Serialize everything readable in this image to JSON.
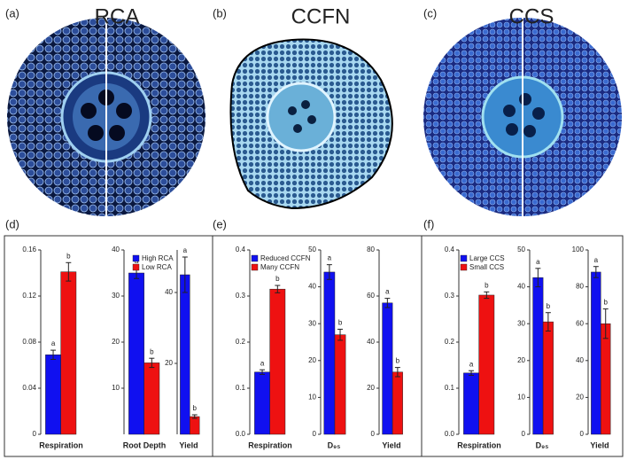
{
  "figure": {
    "panels": [
      {
        "label": "(a)",
        "title": "RCA"
      },
      {
        "label": "(b)",
        "title": "CCFN"
      },
      {
        "label": "(c)",
        "title": "CCS"
      }
    ],
    "chart_panels": [
      "(d)",
      "(e)",
      "(f)"
    ]
  },
  "chart_data": [
    {
      "type": "bar",
      "x_label": "Respiration",
      "values": [
        0.069,
        0.141
      ],
      "errors": [
        0.004,
        0.008
      ],
      "colors": [
        "#1010f0",
        "#ee1111"
      ],
      "bar_labels": [
        "a",
        "b"
      ],
      "ylim": [
        0,
        0.16
      ],
      "yticks": [
        0,
        0.04,
        0.08,
        0.12,
        0.16
      ]
    },
    {
      "type": "bar",
      "x_label": "Root Depth",
      "values": [
        35,
        15.5
      ],
      "errors": [
        1.2,
        1
      ],
      "colors": [
        "#1010f0",
        "#ee1111"
      ],
      "bar_labels": [
        "a",
        "b"
      ],
      "ylim": [
        0,
        40
      ],
      "yticks": [
        10,
        20,
        30,
        40
      ],
      "legend": [
        "High RCA",
        "Low RCA"
      ],
      "legend_position": "top-right"
    },
    {
      "type": "bar",
      "x_label": "Yield",
      "values": [
        45,
        5
      ],
      "errors": [
        5,
        0.5
      ],
      "colors": [
        "#1010f0",
        "#ee1111"
      ],
      "bar_labels": [
        "a",
        "b"
      ],
      "ylim": [
        0,
        52
      ],
      "yticks": [
        20,
        40
      ]
    },
    {
      "type": "bar",
      "x_label": "Respiration",
      "values": [
        0.135,
        0.315
      ],
      "errors": [
        0.005,
        0.008
      ],
      "colors": [
        "#1010f0",
        "#ee1111"
      ],
      "bar_labels": [
        "a",
        "b"
      ],
      "ylim": [
        0,
        0.4
      ],
      "yticks": [
        {
          "value": 0,
          "label": "0.0"
        },
        0.1,
        0.2,
        0.3,
        0.4
      ],
      "legend": [
        "Reduced CCFN",
        "Many CCFN"
      ],
      "legend_position": "top-left"
    },
    {
      "type": "bar",
      "x_label": "D₉₅",
      "values": [
        44,
        27
      ],
      "errors": [
        2,
        1.5
      ],
      "colors": [
        "#1010f0",
        "#ee1111"
      ],
      "bar_labels": [
        "a",
        "b"
      ],
      "ylim": [
        0,
        50
      ],
      "yticks": [
        0,
        10,
        20,
        30,
        40,
        50
      ]
    },
    {
      "type": "bar",
      "x_label": "Yield",
      "values": [
        57,
        27
      ],
      "errors": [
        2,
        2
      ],
      "colors": [
        "#1010f0",
        "#ee1111"
      ],
      "bar_labels": [
        "a",
        "b"
      ],
      "ylim": [
        0,
        80
      ],
      "yticks": [
        0,
        20,
        40,
        60,
        80
      ]
    },
    {
      "type": "bar",
      "x_label": "Respiration",
      "values": [
        0.133,
        0.302
      ],
      "errors": [
        0.005,
        0.007
      ],
      "colors": [
        "#1010f0",
        "#ee1111"
      ],
      "bar_labels": [
        "a",
        "b"
      ],
      "ylim": [
        0,
        0.4
      ],
      "yticks": [
        {
          "value": 0,
          "label": "0.0"
        },
        0.1,
        0.2,
        0.3,
        0.4
      ],
      "legend": [
        "Large CCS",
        "Small CCS"
      ],
      "legend_position": "top-left"
    },
    {
      "type": "bar",
      "x_label": "D₉₅",
      "values": [
        42.5,
        30.5
      ],
      "errors": [
        2.5,
        2.5
      ],
      "colors": [
        "#1010f0",
        "#ee1111"
      ],
      "bar_labels": [
        "a",
        "b"
      ],
      "ylim": [
        0,
        50
      ],
      "yticks": [
        0,
        10,
        20,
        30,
        40,
        50
      ]
    },
    {
      "type": "bar",
      "x_label": "Yield",
      "values": [
        88,
        60
      ],
      "errors": [
        3,
        8
      ],
      "colors": [
        "#1010f0",
        "#ee1111"
      ],
      "bar_labels": [
        "a",
        "b"
      ],
      "ylim": [
        0,
        100
      ],
      "yticks": [
        0,
        20,
        40,
        60,
        80,
        100
      ]
    }
  ]
}
